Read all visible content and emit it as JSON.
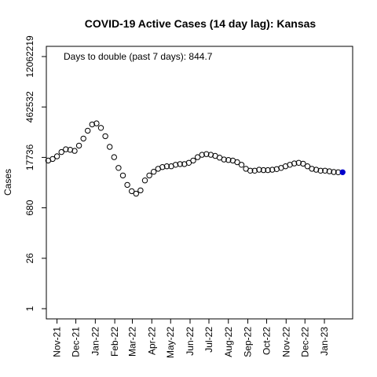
{
  "chart_data": {
    "type": "scatter",
    "title": "COVID-19 Active Cases (14 day lag): Kansas",
    "ylabel": "Cases",
    "xlabel": "",
    "annotation": "Days to double (past 7 days): 844.7",
    "y_scale": "log",
    "ylim": [
      1,
      12062219
    ],
    "y_ticks": [
      1,
      26,
      680,
      17736,
      462532,
      12062219
    ],
    "x_ticks": [
      "2021-11-01",
      "2021-12-01",
      "2022-01-01",
      "2022-02-01",
      "2022-03-01",
      "2022-04-01",
      "2022-05-01",
      "2022-06-01",
      "2022-07-01",
      "2022-08-01",
      "2022-09-01",
      "2022-10-01",
      "2022-11-01",
      "2022-12-01",
      "2023-01-01"
    ],
    "x_tick_labels": [
      "Nov-21",
      "Dec-21",
      "Jan-22",
      "Feb-22",
      "Mar-22",
      "Apr-22",
      "May-22",
      "Jun-22",
      "Jul-22",
      "Aug-22",
      "Sep-22",
      "Oct-22",
      "Nov-22",
      "Dec-22",
      "Jan-23"
    ],
    "xlim": [
      "2021-10-15",
      "2023-02-15"
    ],
    "grid": false,
    "marker": "open-circle",
    "last_point_color": "#0000cc",
    "series": [
      {
        "x": [
          "2021-10-18",
          "2021-10-25",
          "2021-11-01",
          "2021-11-08",
          "2021-11-15",
          "2021-11-22",
          "2021-11-29",
          "2021-12-06",
          "2021-12-13",
          "2021-12-20",
          "2021-12-27",
          "2022-01-03",
          "2022-01-10",
          "2022-01-17",
          "2022-01-24",
          "2022-01-31",
          "2022-02-07",
          "2022-02-14",
          "2022-02-21",
          "2022-02-28",
          "2022-03-07",
          "2022-03-14",
          "2022-03-21",
          "2022-03-28",
          "2022-04-04",
          "2022-04-11",
          "2022-04-18",
          "2022-04-25",
          "2022-05-02",
          "2022-05-09",
          "2022-05-16",
          "2022-05-23",
          "2022-05-30",
          "2022-06-06",
          "2022-06-13",
          "2022-06-20",
          "2022-06-27",
          "2022-07-04",
          "2022-07-11",
          "2022-07-18",
          "2022-07-25",
          "2022-08-01",
          "2022-08-08",
          "2022-08-15",
          "2022-08-22",
          "2022-08-29",
          "2022-09-05",
          "2022-09-12",
          "2022-09-19",
          "2022-09-26",
          "2022-10-03",
          "2022-10-10",
          "2022-10-17",
          "2022-10-24",
          "2022-10-31",
          "2022-11-07",
          "2022-11-14",
          "2022-11-21",
          "2022-11-28",
          "2022-12-05",
          "2022-12-12",
          "2022-12-19",
          "2022-12-26",
          "2023-01-02",
          "2023-01-09",
          "2023-01-16",
          "2023-01-23",
          "2023-01-30"
        ],
        "y": [
          14500,
          16000,
          19000,
          25000,
          30000,
          29000,
          27000,
          38000,
          60000,
          100000,
          150000,
          160000,
          120000,
          70000,
          35000,
          18000,
          9000,
          5500,
          3000,
          2000,
          1700,
          2100,
          4000,
          5500,
          7000,
          8500,
          9500,
          10000,
          10000,
          11000,
          11500,
          11500,
          12500,
          14500,
          18000,
          21000,
          22000,
          21000,
          19500,
          17500,
          15500,
          15000,
          14500,
          13000,
          11000,
          8500,
          7500,
          7500,
          8000,
          7800,
          7800,
          8000,
          8300,
          9000,
          10000,
          11000,
          12000,
          12500,
          11800,
          10000,
          8500,
          8000,
          7500,
          7500,
          7200,
          6900,
          6800,
          6800
        ]
      }
    ]
  }
}
